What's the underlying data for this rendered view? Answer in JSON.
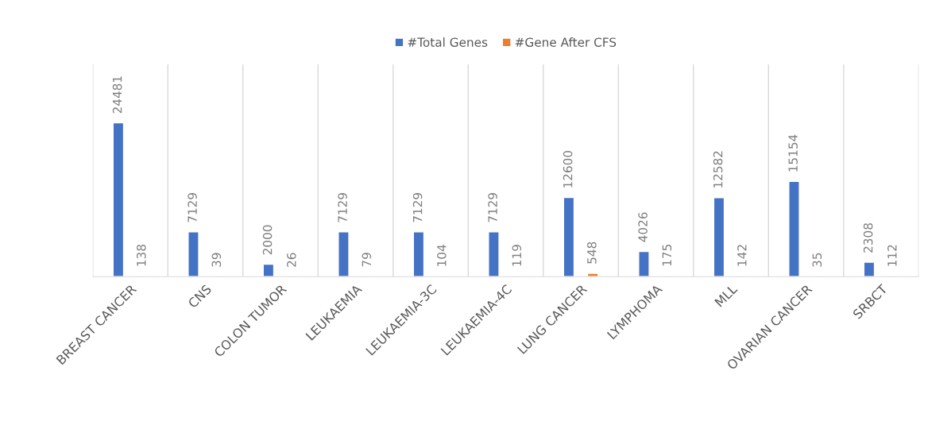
{
  "chart_data": {
    "type": "bar",
    "categories": [
      "BREAST CANCER",
      "CNS",
      "COLON TUMOR",
      "LEUKAEMIA",
      "LEUKAEMIA-3C",
      "LEUKAEMIA-4C",
      "LUNG CANCER",
      "LYMPHOMA",
      "MLL",
      "OVARIAN CANCER",
      "SRBCT"
    ],
    "series": [
      {
        "name": "#Total Genes",
        "color": "#4472c4",
        "values": [
          24481,
          7129,
          2000,
          7129,
          7129,
          7129,
          12600,
          4026,
          12582,
          15154,
          2308
        ]
      },
      {
        "name": "#Gene After CFS",
        "color": "#ed7d31",
        "values": [
          138,
          39,
          26,
          79,
          104,
          119,
          548,
          175,
          142,
          35,
          112
        ]
      }
    ],
    "data_labels": true,
    "grid": "x",
    "legend": "top"
  }
}
